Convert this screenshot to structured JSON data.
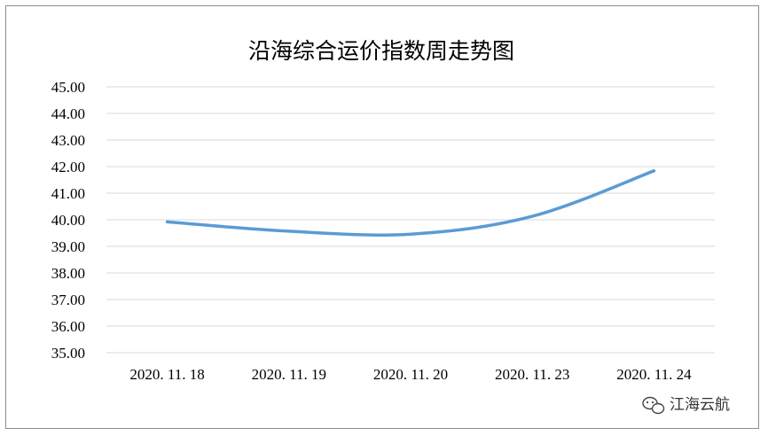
{
  "chart_data": {
    "type": "line",
    "title": "沿海综合运价指数周走势图",
    "xlabel": "",
    "ylabel": "",
    "categories": [
      "2020.11.18",
      "2020.11.19",
      "2020.11.20",
      "2020.11.23",
      "2020.11.24"
    ],
    "series": [
      {
        "values": [
          39.92,
          39.57,
          39.46,
          40.13,
          41.84
        ]
      }
    ],
    "ylim": [
      35,
      45
    ],
    "yticks": [
      "35.00",
      "36.00",
      "37.00",
      "38.00",
      "39.00",
      "40.00",
      "41.00",
      "42.00",
      "43.00",
      "44.00",
      "45.00"
    ],
    "grid": true,
    "legend": "none",
    "line_color": "#5b9bd5"
  },
  "watermark": {
    "text": "江海云航",
    "icon": "wechat-icon"
  }
}
